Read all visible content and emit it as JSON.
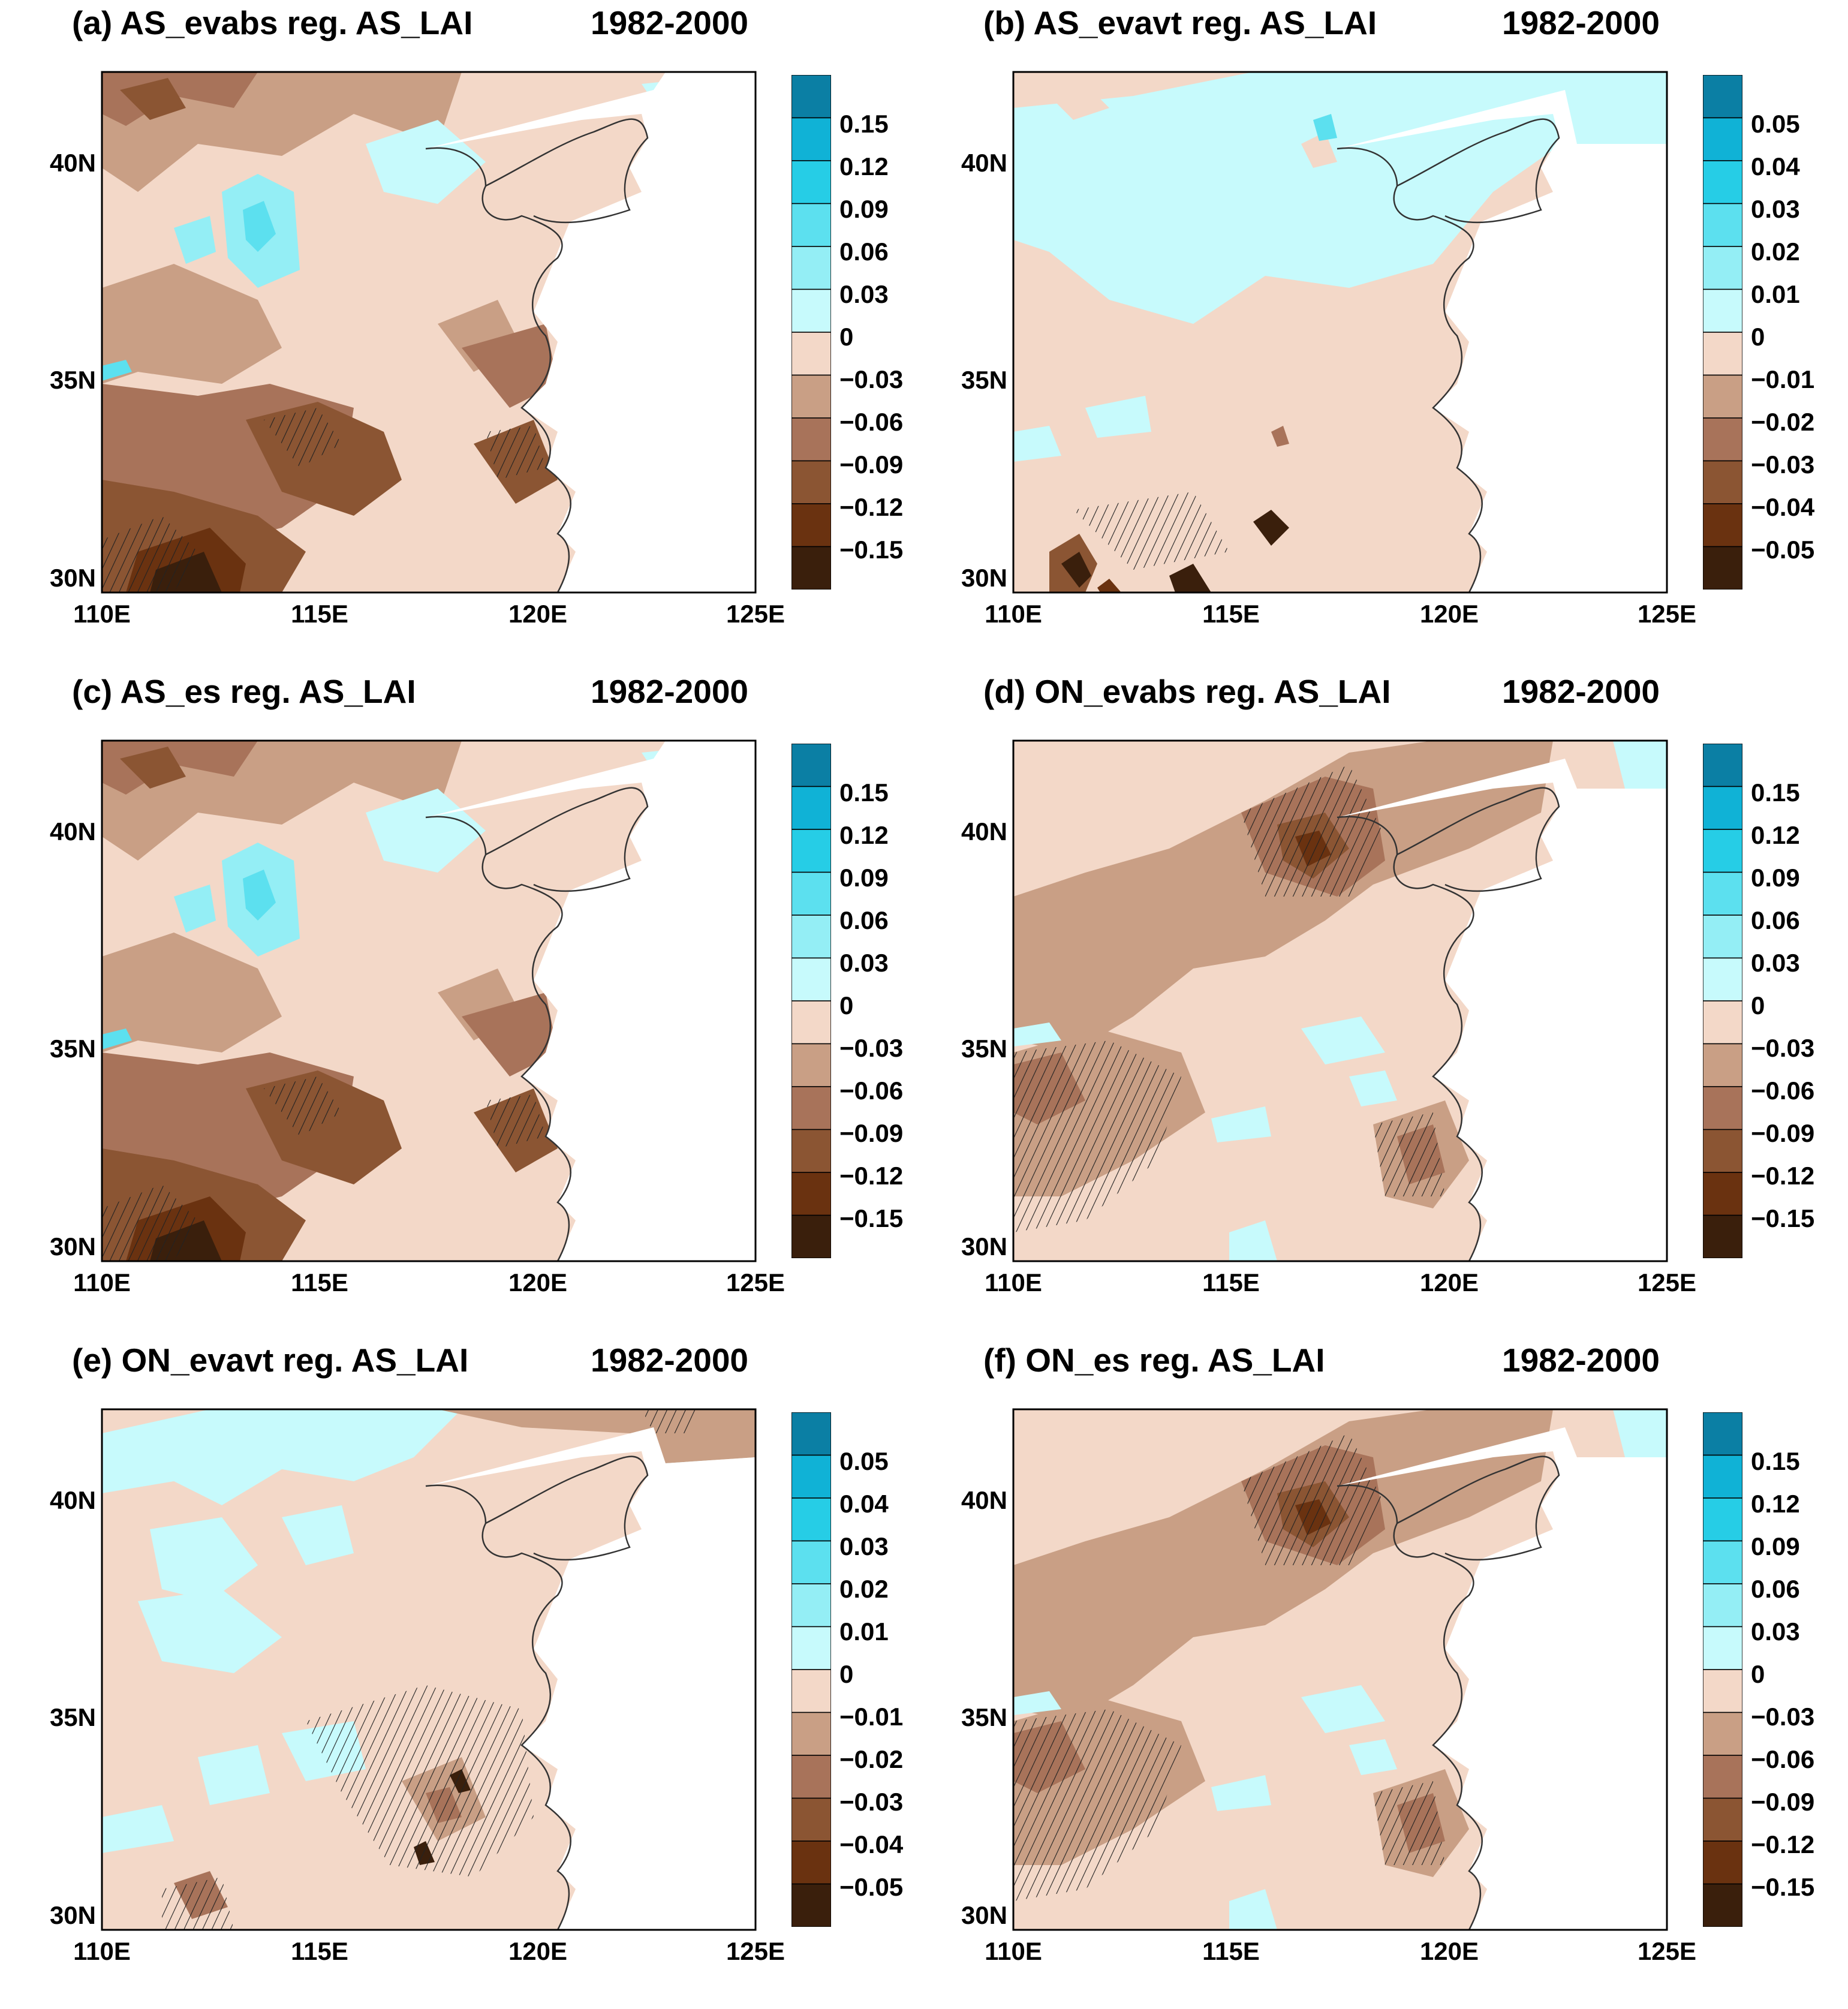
{
  "figure": {
    "axes": {
      "lat_ticks": [
        "30N",
        "35N",
        "40N"
      ],
      "lon_ticks": [
        "110E",
        "115E",
        "120E",
        "125E"
      ]
    },
    "palette": [
      "#3a1f0c",
      "#6a3210",
      "#8b5533",
      "#a8735a",
      "#c99f85",
      "#f3d8c8",
      "#c7fafc",
      "#94eef5",
      "#5ce0ef",
      "#26cde6",
      "#10b2d6",
      "#0b7fa4"
    ],
    "panels": [
      {
        "id": "a",
        "title": "(a) AS_evabs reg. AS_LAI",
        "period": "1982-2000",
        "colorbar": [
          "0.15",
          "0.12",
          "0.09",
          "0.06",
          "0.03",
          "0",
          "−0.03",
          "−0.06",
          "−0.09",
          "−0.12",
          "−0.15"
        ]
      },
      {
        "id": "b",
        "title": "(b) AS_evavt reg. AS_LAI",
        "period": "1982-2000",
        "colorbar": [
          "0.05",
          "0.04",
          "0.03",
          "0.02",
          "0.01",
          "0",
          "−0.01",
          "−0.02",
          "−0.03",
          "−0.04",
          "−0.05"
        ]
      },
      {
        "id": "c",
        "title": "(c) AS_es reg. AS_LAI",
        "period": "1982-2000",
        "colorbar": [
          "0.15",
          "0.12",
          "0.09",
          "0.06",
          "0.03",
          "0",
          "−0.03",
          "−0.06",
          "−0.09",
          "−0.12",
          "−0.15"
        ]
      },
      {
        "id": "d",
        "title": "(d) ON_evabs reg. AS_LAI",
        "period": "1982-2000",
        "colorbar": [
          "0.15",
          "0.12",
          "0.09",
          "0.06",
          "0.03",
          "0",
          "−0.03",
          "−0.06",
          "−0.09",
          "−0.12",
          "−0.15"
        ]
      },
      {
        "id": "e",
        "title": "(e) ON_evavt reg. AS_LAI",
        "period": "1982-2000",
        "colorbar": [
          "0.05",
          "0.04",
          "0.03",
          "0.02",
          "0.01",
          "0",
          "−0.01",
          "−0.02",
          "−0.03",
          "−0.04",
          "−0.05"
        ]
      },
      {
        "id": "f",
        "title": "(f) ON_es reg. AS_LAI",
        "period": "1982-2000",
        "colorbar": [
          "0.15",
          "0.12",
          "0.09",
          "0.06",
          "0.03",
          "0",
          "−0.03",
          "−0.06",
          "−0.09",
          "−0.12",
          "−0.15"
        ]
      }
    ]
  }
}
